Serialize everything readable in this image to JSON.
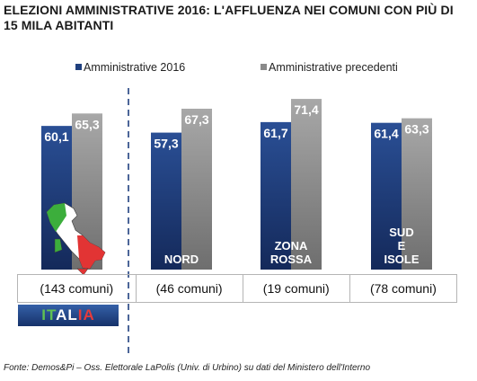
{
  "title": "ELEZIONI AMMINISTRATIVE 2016: L'AFFLUENZA NEI COMUNI CON PIÙ DI\n15 MILA ABITANTI",
  "legend": [
    {
      "label": "Amministrative 2016",
      "color": "#1f3f7e"
    },
    {
      "label": "Amministrative  precedenti",
      "color": "#8a8a8a"
    }
  ],
  "chart_data": {
    "type": "bar",
    "categories": [
      "ITALIA",
      "NORD",
      "ZONA ROSSA",
      "SUD E ISOLE"
    ],
    "series": [
      {
        "name": "Amministrative 2016",
        "values": [
          60.1,
          57.3,
          61.7,
          61.4
        ]
      },
      {
        "name": "Amministrative  precedenti",
        "values": [
          65.3,
          67.3,
          71.4,
          63.3
        ]
      }
    ],
    "value_labels": [
      [
        "60,1",
        "57,3",
        "61,7",
        "61,4"
      ],
      [
        "65,3",
        "67,3",
        "71,4",
        "63,3"
      ]
    ],
    "bar_labels": [
      [],
      [
        "NORD"
      ],
      [
        "ZONA",
        "ROSSA"
      ],
      [
        "SUD",
        "E",
        "ISOLE"
      ]
    ],
    "ylim": [
      0,
      100
    ],
    "grid": false,
    "legend_position": "top"
  },
  "footer_counts": [
    "(143 comuni)",
    "(46 comuni)",
    "(19 comuni)",
    "(78 comuni)"
  ],
  "badge_letters": [
    {
      "text": "IT",
      "color": "green"
    },
    {
      "text": "AL",
      "color": "white"
    },
    {
      "text": "IA",
      "color": "red"
    }
  ],
  "source": "Fonte: Demos&Pi – Oss. Elettorale LaPolis (Univ. di Urbino) su dati del Ministero dell'Interno"
}
